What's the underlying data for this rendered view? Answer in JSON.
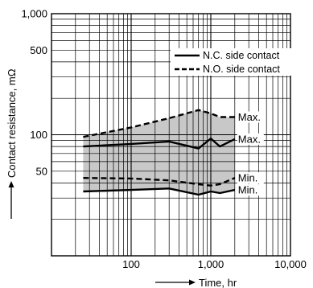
{
  "chart_data": {
    "type": "line",
    "title": "",
    "xlabel": "Time, hr",
    "ylabel": "Contact resistance, mΩ",
    "x_scale": "log",
    "y_scale": "log",
    "xlim": [
      10,
      10000
    ],
    "ylim": [
      10,
      1000
    ],
    "x_tick_labels": [
      {
        "value": 100,
        "label": "100"
      },
      {
        "value": 1000,
        "label": "1,000"
      },
      {
        "value": 10000,
        "label": "10,000"
      }
    ],
    "y_tick_labels": [
      {
        "value": 1000,
        "label": "1,000"
      },
      {
        "value": 500,
        "label": "500"
      },
      {
        "value": 100,
        "label": "100"
      },
      {
        "value": 50,
        "label": "50"
      }
    ],
    "grid": true,
    "legend_position": "top-right",
    "legend": [
      {
        "label": "N.C. side contact",
        "style": "solid"
      },
      {
        "label": "N.O. side contact",
        "style": "dashed"
      }
    ],
    "shaded_band_color": "#c8c8c8",
    "series": [
      {
        "legend": "N.C. side contact",
        "label": "Max.",
        "style": "solid",
        "x": [
          25,
          100,
          300,
          700,
          1000,
          1300,
          2000
        ],
        "y": [
          80,
          84,
          88,
          77,
          93,
          80,
          92
        ]
      },
      {
        "legend": "N.C. side contact",
        "label": "Min.",
        "style": "solid",
        "x": [
          25,
          100,
          300,
          700,
          1000,
          1300,
          2000
        ],
        "y": [
          34,
          35,
          36,
          32,
          34,
          33,
          35
        ]
      },
      {
        "legend": "N.O. side contact",
        "label": "Max.",
        "style": "dashed",
        "x": [
          25,
          100,
          300,
          700,
          1000,
          1300,
          2000
        ],
        "y": [
          96,
          115,
          137,
          160,
          150,
          140,
          140
        ]
      },
      {
        "legend": "N.O. side contact",
        "label": "Min.",
        "style": "dashed",
        "x": [
          25,
          100,
          300,
          700,
          1000,
          1300,
          2000
        ],
        "y": [
          44,
          43.5,
          42,
          39,
          38,
          39,
          44
        ]
      }
    ]
  }
}
